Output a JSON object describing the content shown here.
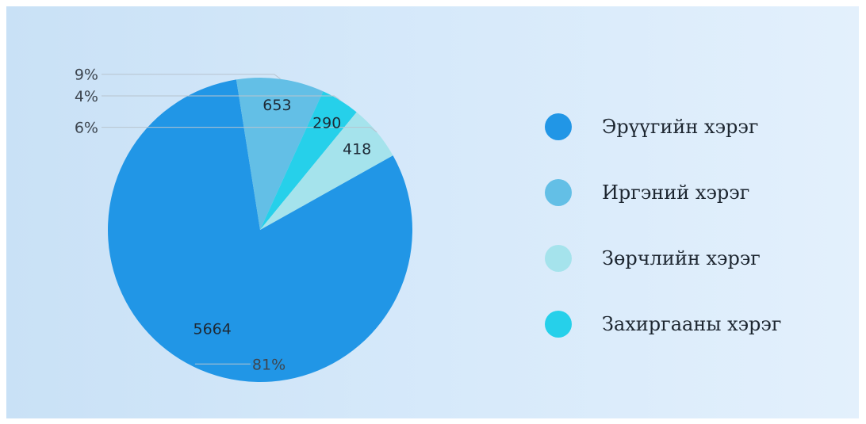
{
  "chart_data": {
    "type": "pie",
    "categories": [
      "Эрүүгийн хэрэг",
      "Иргэний хэрэг",
      "Зөрчлийн хэрэг",
      "Захиргааны хэрэг"
    ],
    "values": [
      5664,
      653,
      418,
      290
    ],
    "percent_labels": [
      "81%",
      "9%",
      "6%",
      "4%"
    ],
    "title": "",
    "legend_position": "right",
    "colors": {
      "Эрүүгийн хэрэг": "#2196e6",
      "Иргэний хэрэг": "#63bfe6",
      "Зөрчлийн хэрэг": "#a5e3ec",
      "Захиргааны хэрэг": "#26d0ea"
    },
    "slice_order": [
      "Эрүүгийн хэрэг",
      "Иргэний хэрэг",
      "Захиргааны хэрэг",
      "Зөрчлийн хэрэг"
    ]
  }
}
